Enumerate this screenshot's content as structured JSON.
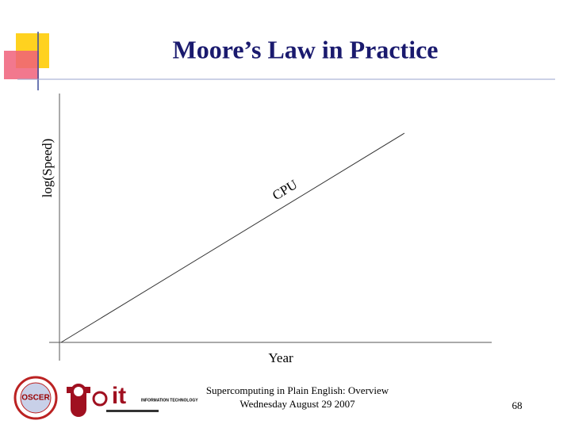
{
  "slide": {
    "title": "Moore’s Law in Practice",
    "diagram": {
      "y_axis_label": "log(Speed)",
      "x_axis_label": "Year",
      "line_label": "CPU"
    },
    "footer": {
      "line1": "Supercomputing in Plain English: Overview",
      "line2": "Wednesday August 29 2007",
      "page_number": "68"
    },
    "logos": {
      "oscer": "OSCER",
      "it": "it",
      "it_caption": "INFORMATION TECHNOLOGY"
    }
  }
}
